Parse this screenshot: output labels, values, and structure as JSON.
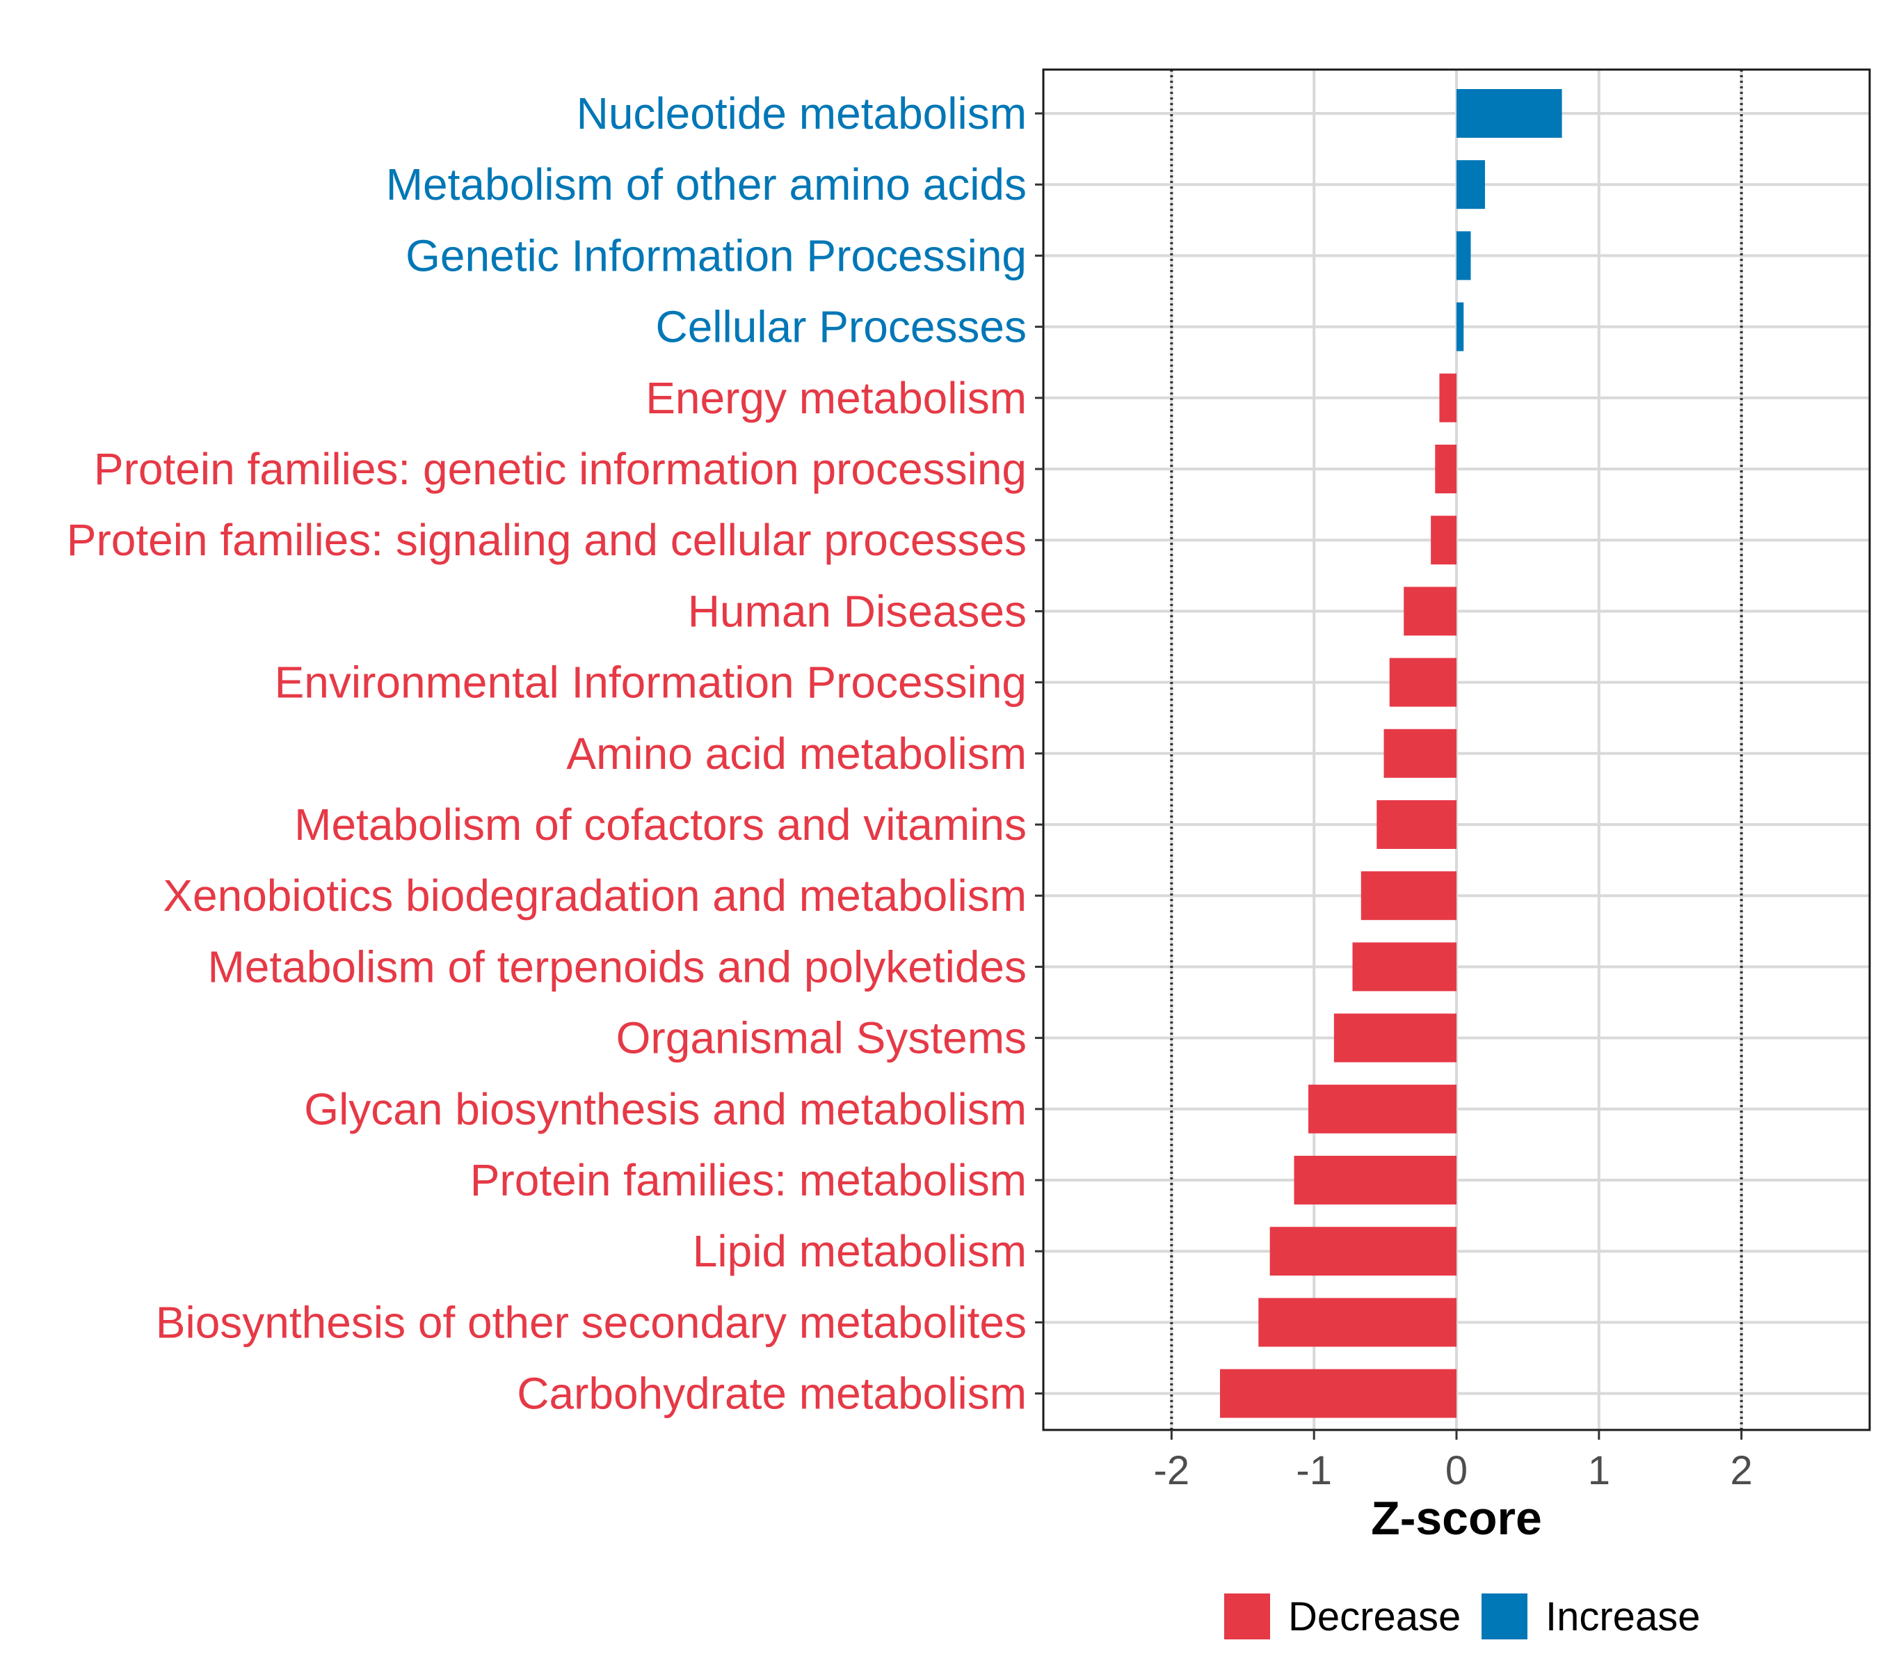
{
  "chart_data": {
    "type": "bar",
    "orientation": "horizontal",
    "categories": [
      "Nucleotide metabolism",
      "Metabolism of other amino acids",
      "Genetic Information Processing",
      "Cellular Processes",
      "Energy metabolism",
      "Protein families: genetic information processing",
      "Protein families: signaling and cellular processes",
      "Human Diseases",
      "Environmental Information Processing",
      "Amino acid metabolism",
      "Metabolism of cofactors and vitamins",
      "Xenobiotics biodegradation and metabolism",
      "Metabolism of terpenoids and polyketides",
      "Organismal Systems",
      "Glycan biosynthesis and metabolism",
      "Protein families: metabolism",
      "Lipid metabolism",
      "Biosynthesis of other secondary metabolites",
      "Carbohydrate metabolism"
    ],
    "values": [
      0.74,
      0.2,
      0.1,
      0.05,
      -0.12,
      -0.15,
      -0.18,
      -0.37,
      -0.47,
      -0.51,
      -0.56,
      -0.67,
      -0.73,
      -0.86,
      -1.04,
      -1.14,
      -1.31,
      -1.39,
      -1.66
    ],
    "groups": [
      "Increase",
      "Increase",
      "Increase",
      "Increase",
      "Decrease",
      "Decrease",
      "Decrease",
      "Decrease",
      "Decrease",
      "Decrease",
      "Decrease",
      "Decrease",
      "Decrease",
      "Decrease",
      "Decrease",
      "Decrease",
      "Decrease",
      "Decrease",
      "Decrease"
    ],
    "xlabel": "Z-score",
    "ylabel": "",
    "xlim": [
      -2.9,
      2.9
    ],
    "xticks": [
      -2,
      -1,
      0,
      1,
      2
    ],
    "xtick_labels": [
      "-2",
      "-1",
      "0",
      "1",
      "2"
    ],
    "reference_lines": [
      -2,
      2
    ],
    "grid": true,
    "legend": {
      "position": "bottom",
      "entries": [
        {
          "label": "Decrease",
          "color": "#E63946"
        },
        {
          "label": "Increase",
          "color": "#0077B6"
        }
      ]
    },
    "colors": {
      "Decrease": "#E63946",
      "Increase": "#0077B6"
    }
  }
}
